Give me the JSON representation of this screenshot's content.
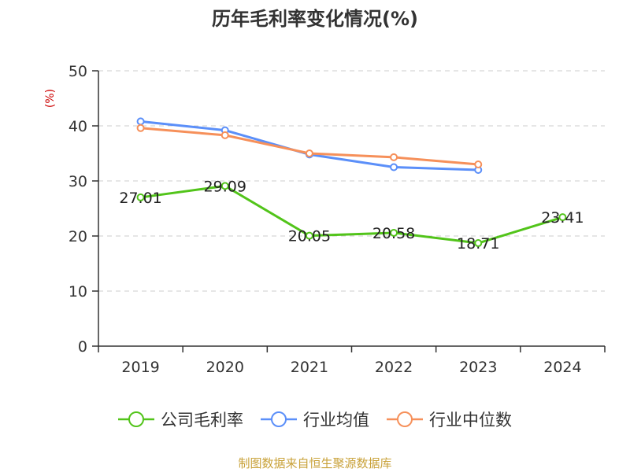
{
  "title": "历年毛利率变化情况(%)",
  "source": "制图数据来自恒生聚源数据库",
  "colors": {
    "gross_margin": "#52c41a",
    "industry_avg": "#5b8ff9",
    "industry_median": "#f6905a",
    "axis": "#333333",
    "grid": "#cccccc",
    "ylabel": "#cc0000"
  },
  "chart_data": {
    "type": "line",
    "title": "历年毛利率变化情况(%)",
    "xlabel": "",
    "ylabel": "(%)",
    "categories": [
      "2019",
      "2020",
      "2021",
      "2022",
      "2023",
      "2024"
    ],
    "ylim": [
      0,
      50
    ],
    "yticks": [
      0,
      10,
      20,
      30,
      40,
      50
    ],
    "grid": true,
    "legend_position": "bottom",
    "series": [
      {
        "name": "公司毛利率",
        "color": "#52c41a",
        "values": [
          27.01,
          29.09,
          20.05,
          20.58,
          18.71,
          23.41
        ],
        "labels": [
          "27.01",
          "29.09",
          "20.05",
          "20.58",
          "18.71",
          "23.41"
        ]
      },
      {
        "name": "行业均值",
        "color": "#5b8ff9",
        "values": [
          40.8,
          39.2,
          34.8,
          32.5,
          32.0,
          null
        ]
      },
      {
        "name": "行业中位数",
        "color": "#f6905a",
        "values": [
          39.6,
          38.3,
          35.0,
          34.3,
          33.0,
          null
        ]
      }
    ]
  }
}
